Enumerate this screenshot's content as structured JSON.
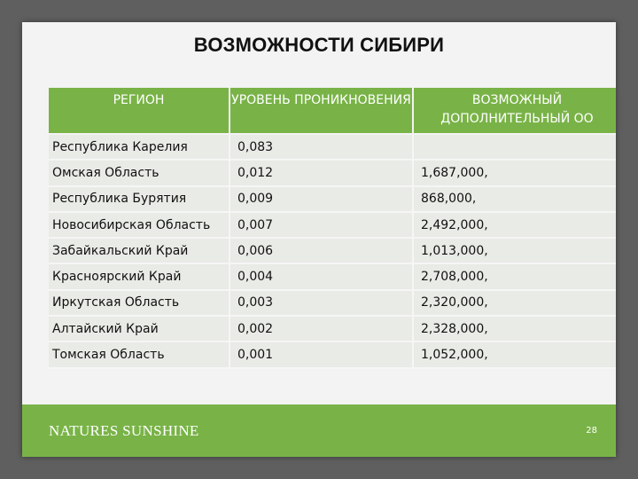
{
  "slide": {
    "title": "ВОЗМОЖНОСТИ СИБИРИ",
    "footer": {
      "logo_text": "NATURES SUNSHINE",
      "page_number": "28"
    }
  },
  "table": {
    "headers": [
      "РЕГИОН",
      "УРОВЕНЬ ПРОНИКНОВЕНИЯ",
      "ВОЗМОЖНЫЙ ДОПОЛНИТЕЛЬНЫЙ ОО"
    ],
    "rows": [
      [
        "Республика Карелия",
        "0,083",
        ""
      ],
      [
        "Омская Область",
        "0,012",
        "1,687,000,"
      ],
      [
        "Республика Бурятия",
        "0,009",
        "868,000,"
      ],
      [
        "Новосибирская Область",
        "0,007",
        "2,492,000,"
      ],
      [
        "Забайкальский Край",
        "0,006",
        "1,013,000,"
      ],
      [
        "Красноярский Край",
        "0,004",
        "2,708,000,"
      ],
      [
        "Иркутская Область",
        "0,003",
        "2,320,000,"
      ],
      [
        "Алтайский Край",
        "0,002",
        "2,328,000,"
      ],
      [
        "Томская Область",
        "0,001",
        "1,052,000,"
      ]
    ]
  },
  "colors": {
    "background": "#5f5f5f",
    "slide": "#f3f3f3",
    "accent_green": "#79b347",
    "cell": "#e9ebe6"
  }
}
